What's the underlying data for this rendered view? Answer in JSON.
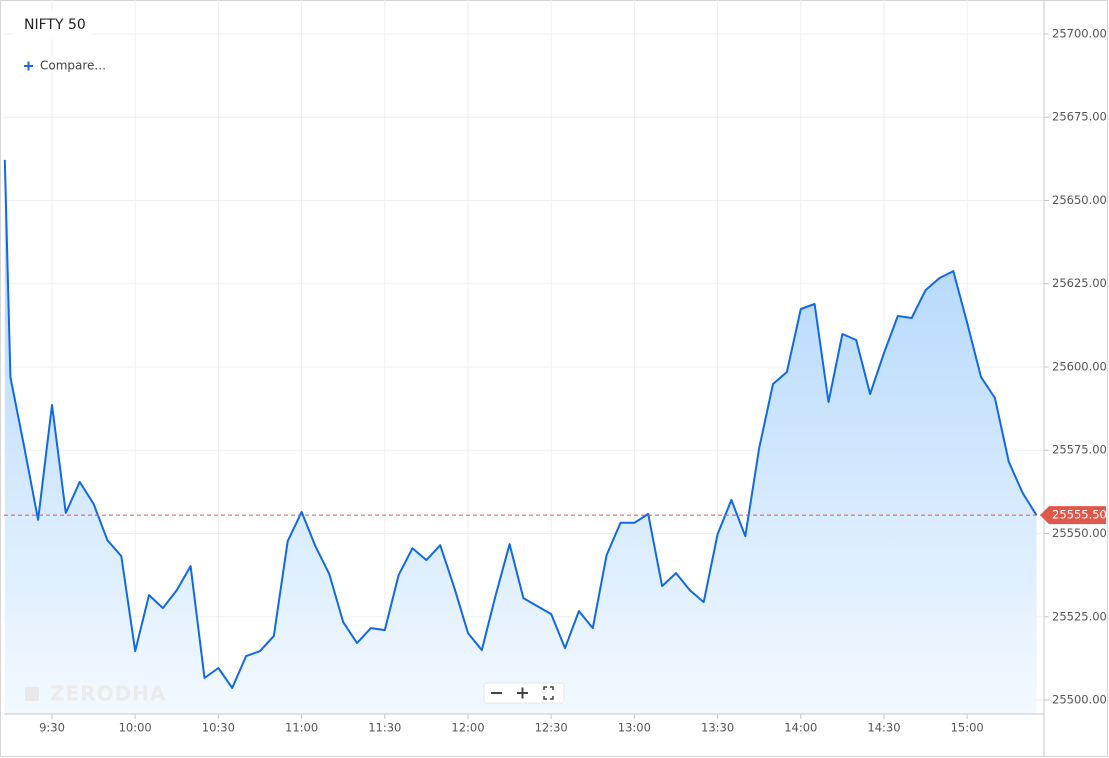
{
  "chart_data": {
    "type": "area",
    "title": "NIFTY 50",
    "compare_label": "Compare...",
    "watermark": "ZERODHA",
    "line_color": "#1169e4",
    "fill_top": "#a9d2fc",
    "fill_bottom": "#f3f9ff",
    "last_price_color": "#e0584c",
    "grid": true,
    "xlim": [
      552.7,
      927.7
    ],
    "ylim": [
      25495.8,
      25710.2
    ],
    "xticks": [
      {
        "value": 570,
        "label": "9:30"
      },
      {
        "value": 600,
        "label": "10:00"
      },
      {
        "value": 630,
        "label": "10:30"
      },
      {
        "value": 660,
        "label": "11:00"
      },
      {
        "value": 690,
        "label": "11:30"
      },
      {
        "value": 720,
        "label": "12:00"
      },
      {
        "value": 750,
        "label": "12:30"
      },
      {
        "value": 780,
        "label": "13:00"
      },
      {
        "value": 810,
        "label": "13:30"
      },
      {
        "value": 840,
        "label": "14:00"
      },
      {
        "value": 870,
        "label": "14:30"
      },
      {
        "value": 900,
        "label": "15:00"
      }
    ],
    "yticks": [
      {
        "value": 25500,
        "label": "25500.00"
      },
      {
        "value": 25525,
        "label": "25525.00"
      },
      {
        "value": 25550,
        "label": "25550.00"
      },
      {
        "value": 25575,
        "label": "25575.00"
      },
      {
        "value": 25600,
        "label": "25600.00"
      },
      {
        "value": 25625,
        "label": "25625.00"
      },
      {
        "value": 25650,
        "label": "25650.00"
      },
      {
        "value": 25675,
        "label": "25675.00"
      },
      {
        "value": 25700,
        "label": "25700.00"
      }
    ],
    "x": [
      553,
      555,
      560,
      565,
      570,
      575,
      580,
      585,
      590,
      595,
      600,
      605,
      610,
      615,
      620,
      625,
      630,
      635,
      640,
      645,
      650,
      655,
      660,
      665,
      670,
      675,
      680,
      685,
      690,
      695,
      700,
      705,
      710,
      715,
      720,
      725,
      730,
      735,
      740,
      745,
      750,
      755,
      760,
      765,
      770,
      775,
      780,
      785,
      790,
      795,
      800,
      805,
      810,
      815,
      820,
      825,
      830,
      835,
      840,
      845,
      850,
      855,
      860,
      865,
      870,
      875,
      880,
      885,
      890,
      895,
      900,
      905,
      910,
      915,
      920,
      925
    ],
    "values": [
      25662.2,
      25597.0,
      25576.0,
      25554.1,
      25588.6,
      25556.2,
      25565.5,
      25558.9,
      25548.0,
      25543.2,
      25514.7,
      25531.5,
      25527.6,
      25533.0,
      25540.2,
      25506.6,
      25509.6,
      25503.6,
      25513.2,
      25514.7,
      25519.2,
      25547.7,
      25556.5,
      25546.2,
      25537.8,
      25523.4,
      25517.1,
      25521.6,
      25521.0,
      25537.5,
      25545.6,
      25542.0,
      25546.5,
      25533.9,
      25520.1,
      25515.0,
      25531.5,
      25546.8,
      25530.6,
      25528.2,
      25525.8,
      25515.6,
      25526.7,
      25521.6,
      25543.5,
      25553.2,
      25553.2,
      25555.9,
      25534.2,
      25538.1,
      25533.0,
      25529.4,
      25549.8,
      25560.1,
      25549.2,
      25575.7,
      25594.9,
      25598.5,
      25617.4,
      25618.9,
      25589.5,
      25609.9,
      25608.1,
      25591.9,
      25604.2,
      25615.3,
      25614.7,
      25623.1,
      25626.7,
      25628.8,
      25613.2,
      25597.0,
      25590.7,
      25571.5,
      25562.2,
      25555.5
    ],
    "last_price": 25555.5,
    "last_price_label": "25555.50"
  }
}
